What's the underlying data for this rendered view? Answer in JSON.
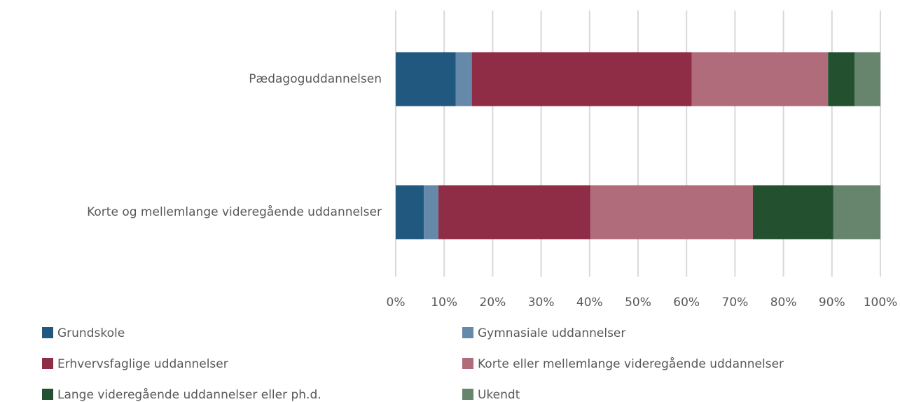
{
  "chart_data": {
    "type": "bar",
    "orientation": "horizontal",
    "stacked": true,
    "categories": [
      "Pædagoguddannelsen",
      "Korte og mellemlange videregående uddannelser"
    ],
    "series": [
      {
        "name": "Grundskole",
        "color": "#21587f",
        "values": [
          12.4,
          5.8
        ]
      },
      {
        "name": "Gymnasiale uddannelser",
        "color": "#6589a8",
        "values": [
          3.3,
          3.0
        ]
      },
      {
        "name": "Erhvervsfaglige uddannelser",
        "color": "#8f2d46",
        "values": [
          45.4,
          31.4
        ]
      },
      {
        "name": "Korte eller mellemlange videregående uddannelser",
        "color": "#b06c7b",
        "values": [
          28.1,
          33.5
        ]
      },
      {
        "name": "Lange videregående uddannelser eller ph.d.",
        "color": "#235130",
        "values": [
          5.5,
          16.6
        ]
      },
      {
        "name": "Ukendt",
        "color": "#66856c",
        "values": [
          5.3,
          9.7
        ]
      }
    ],
    "xlim": [
      0,
      100
    ],
    "xticks": [
      {
        "value": 0,
        "label": "0%"
      },
      {
        "value": 10,
        "label": "10%"
      },
      {
        "value": 20,
        "label": "20%"
      },
      {
        "value": 30,
        "label": "30%"
      },
      {
        "value": 40,
        "label": "40%"
      },
      {
        "value": 50,
        "label": "50%"
      },
      {
        "value": 60,
        "label": "60%"
      },
      {
        "value": 70,
        "label": "70%"
      },
      {
        "value": 80,
        "label": "80%"
      },
      {
        "value": 90,
        "label": "90%"
      },
      {
        "value": 100,
        "label": "100%"
      }
    ],
    "grid": true,
    "legend": "bottom"
  }
}
